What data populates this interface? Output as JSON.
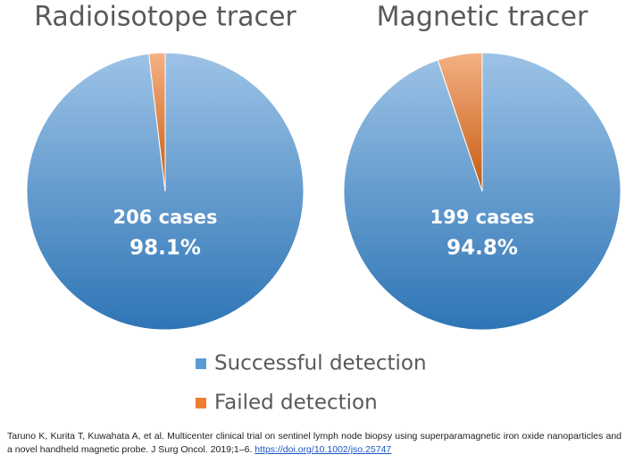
{
  "chart_data": [
    {
      "type": "pie",
      "title": "Radioisotope tracer",
      "categories": [
        "Successful detection",
        "Failed detection"
      ],
      "values": [
        98.1,
        1.9
      ],
      "value_labels": [
        "98.1%",
        null
      ],
      "colors": [
        "#5b9bd5",
        "#ed7d31"
      ],
      "annotation": "206 cases"
    },
    {
      "type": "pie",
      "title": "Magnetic tracer",
      "categories": [
        "Successful detection",
        "Failed detection"
      ],
      "values": [
        94.8,
        5.2
      ],
      "value_labels": [
        "94.8%",
        null
      ],
      "colors": [
        "#5b9bd5",
        "#ed7d31"
      ],
      "annotation": "199 cases"
    }
  ],
  "citation": {
    "text": "Taruno K, Kurita T, Kuwahata A, et al. Multicenter clinical trial on sentinel lymph node biopsy using superparamagnetic iron oxide nanoparticles and a novel handheld magnetic probe. J Surg Oncol. 2019;1–6.",
    "link": "https://doi.org/10.1002/jso.25747"
  }
}
